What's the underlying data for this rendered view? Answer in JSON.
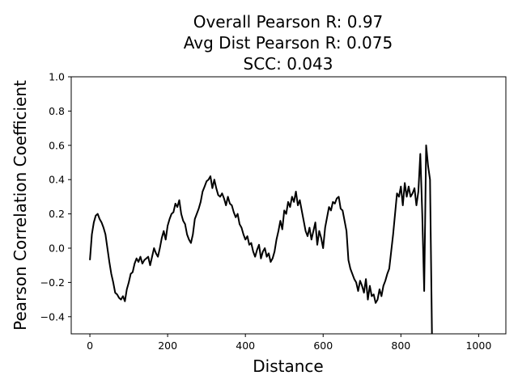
{
  "chart_data": {
    "type": "line",
    "title_lines": [
      "Overall Pearson R: 0.97",
      "Avg Dist Pearson R: 0.075",
      "SCC: 0.043"
    ],
    "xlabel": "Distance",
    "ylabel": "Pearson Correlation Coefficient",
    "xlim": [
      -48,
      1070
    ],
    "ylim": [
      -0.5,
      1.0
    ],
    "x_ticks": [
      0,
      200,
      400,
      600,
      800,
      1000
    ],
    "y_ticks": [
      -0.4,
      -0.2,
      0.0,
      0.2,
      0.4,
      0.6,
      0.8,
      1.0
    ],
    "x_tick_labels": [
      "0",
      "200",
      "400",
      "600",
      "800",
      "1000"
    ],
    "y_tick_labels": [
      "−0.4",
      "−0.2",
      "0.0",
      "0.2",
      "0.4",
      "0.6",
      "0.8",
      "1.0"
    ],
    "grid": false,
    "line_color": "#000000",
    "series": [
      {
        "x_start": 0,
        "x_step": 5,
        "values": [
          -0.07,
          0.08,
          0.15,
          0.19,
          0.2,
          0.17,
          0.15,
          0.12,
          0.08,
          0.0,
          -0.08,
          -0.15,
          -0.2,
          -0.26,
          -0.27,
          -0.29,
          -0.3,
          -0.28,
          -0.31,
          -0.24,
          -0.2,
          -0.15,
          -0.14,
          -0.09,
          -0.06,
          -0.08,
          -0.05,
          -0.09,
          -0.07,
          -0.06,
          -0.05,
          -0.1,
          -0.05,
          0.0,
          -0.03,
          -0.05,
          0.0,
          0.06,
          0.1,
          0.05,
          0.13,
          0.17,
          0.2,
          0.21,
          0.26,
          0.24,
          0.28,
          0.2,
          0.16,
          0.14,
          0.08,
          0.05,
          0.03,
          0.08,
          0.17,
          0.2,
          0.23,
          0.27,
          0.33,
          0.36,
          0.39,
          0.4,
          0.42,
          0.35,
          0.4,
          0.35,
          0.31,
          0.3,
          0.32,
          0.29,
          0.25,
          0.3,
          0.26,
          0.25,
          0.21,
          0.18,
          0.2,
          0.14,
          0.12,
          0.08,
          0.05,
          0.07,
          0.02,
          0.03,
          -0.02,
          -0.05,
          -0.01,
          0.02,
          -0.06,
          -0.02,
          0.0,
          -0.05,
          -0.03,
          -0.08,
          -0.06,
          -0.02,
          0.05,
          0.1,
          0.16,
          0.11,
          0.22,
          0.2,
          0.27,
          0.24,
          0.3,
          0.27,
          0.33,
          0.25,
          0.28,
          0.22,
          0.16,
          0.1,
          0.07,
          0.12,
          0.05,
          0.1,
          0.15,
          0.02,
          0.1,
          0.06,
          0.0,
          0.12,
          0.18,
          0.24,
          0.22,
          0.27,
          0.26,
          0.29,
          0.3,
          0.23,
          0.22,
          0.16,
          0.1,
          -0.07,
          -0.12,
          -0.15,
          -0.18,
          -0.2,
          -0.25,
          -0.19,
          -0.22,
          -0.26,
          -0.18,
          -0.3,
          -0.22,
          -0.28,
          -0.27,
          -0.32,
          -0.3,
          -0.24,
          -0.28,
          -0.22,
          -0.19,
          -0.15,
          -0.12,
          -0.02,
          0.08,
          0.2,
          0.32,
          0.3,
          0.36,
          0.25,
          0.38,
          0.3,
          0.36,
          0.3,
          0.32,
          0.35,
          0.25,
          0.33,
          0.55,
          0.2,
          -0.25,
          0.6,
          0.48,
          0.4,
          -0.5
        ]
      }
    ]
  }
}
